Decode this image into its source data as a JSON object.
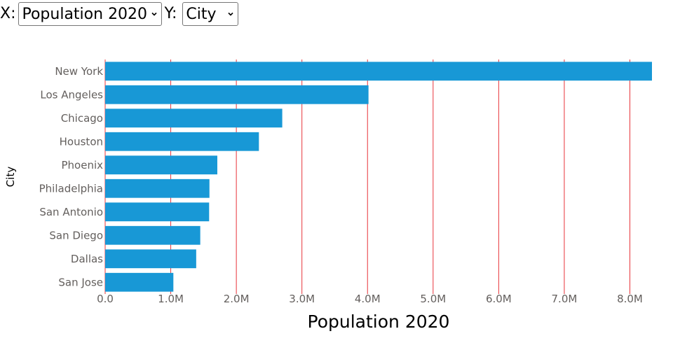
{
  "controls": {
    "x_label": "X:",
    "x_selected": "Population 2020",
    "y_label": "Y:",
    "y_selected": "City"
  },
  "colors": {
    "bar": "#1898d6",
    "gridline": "#e8343a",
    "tick_text": "#635f5d"
  },
  "chart_data": {
    "type": "bar",
    "orientation": "horizontal",
    "categories": [
      "New York",
      "Los Angeles",
      "Chicago",
      "Houston",
      "Phoenix",
      "Philadelphia",
      "San Antonio",
      "San Diego",
      "Dallas",
      "San Jose"
    ],
    "values": [
      8336817,
      4015000,
      2700000,
      2344000,
      1710000,
      1590000,
      1585000,
      1450000,
      1388000,
      1040000
    ],
    "xlabel": "Population 2020",
    "ylabel": "City",
    "xlim": [
      0,
      8336817
    ],
    "x_ticks": [
      0,
      1000000,
      2000000,
      3000000,
      4000000,
      5000000,
      6000000,
      7000000,
      8000000
    ],
    "x_tick_labels": [
      "0.0",
      "1.0M",
      "2.0M",
      "3.0M",
      "4.0M",
      "5.0M",
      "6.0M",
      "7.0M",
      "8.0M"
    ],
    "grid": "vertical"
  }
}
